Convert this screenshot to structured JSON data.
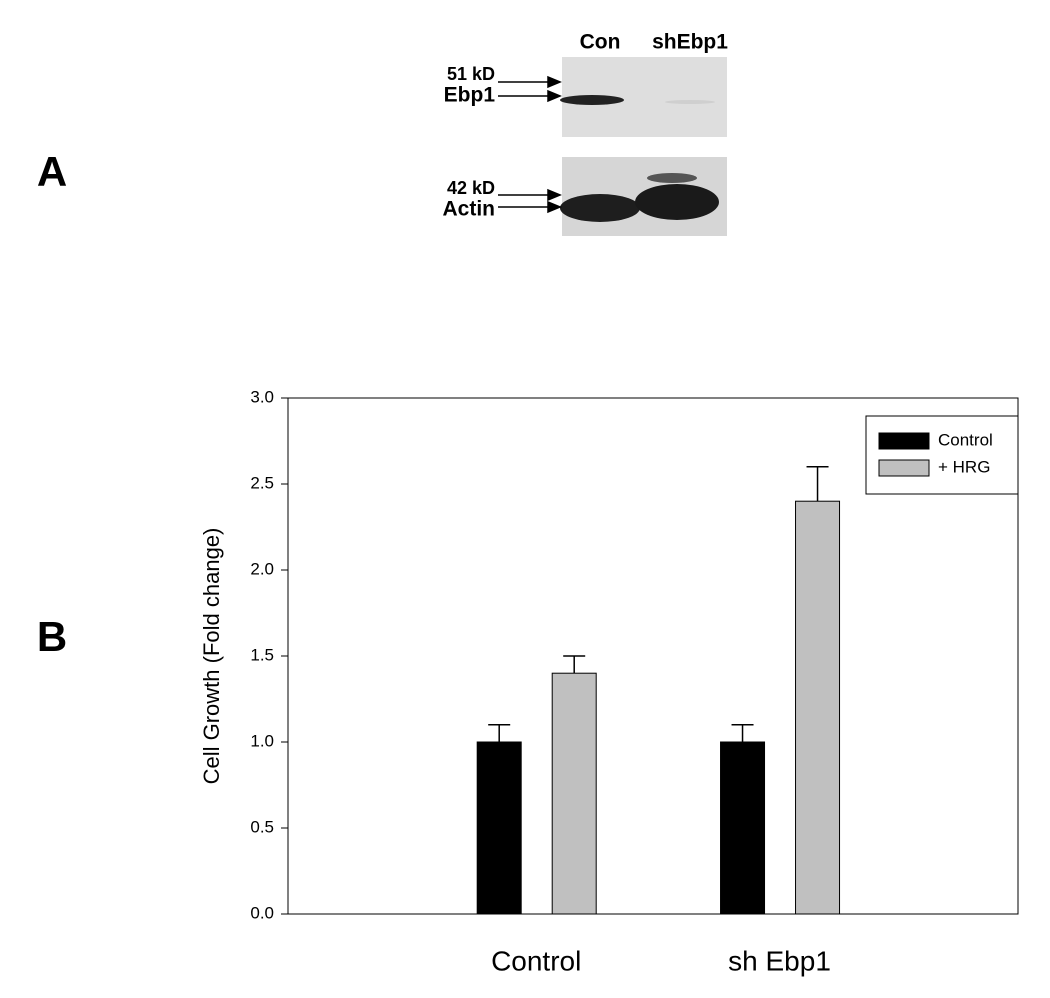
{
  "panel_labels": [
    "A",
    "B"
  ],
  "blot": {
    "lanes": [
      "Con",
      "shEbp1"
    ],
    "top_markers": [
      "51 kD",
      "Ebp1"
    ],
    "bottom_markers": [
      "42 kD",
      "Actin"
    ]
  },
  "chart_data": {
    "type": "bar",
    "ylabel": "Cell Growth (Fold change)",
    "categories": [
      "Control",
      "sh Ebp1"
    ],
    "series": [
      {
        "name": "Control",
        "color": "#000000",
        "values": [
          1.0,
          1.0
        ],
        "errors": [
          0.1,
          0.1
        ]
      },
      {
        "name": "+ HRG",
        "color": "#c0c0c0",
        "values": [
          1.4,
          2.4
        ],
        "errors": [
          0.1,
          0.2
        ]
      }
    ],
    "ylim": [
      0,
      3
    ],
    "yticks": [
      {
        "value": 0,
        "label": "0.0"
      },
      {
        "value": 0.5,
        "label": "0.5"
      },
      {
        "value": 1,
        "label": "1.0"
      },
      {
        "value": 1.5,
        "label": "1.5"
      },
      {
        "value": 2,
        "label": "2.0"
      },
      {
        "value": 2.5,
        "label": "2.5"
      },
      {
        "value": 3,
        "label": "3.0"
      }
    ],
    "legend": "upper right"
  }
}
